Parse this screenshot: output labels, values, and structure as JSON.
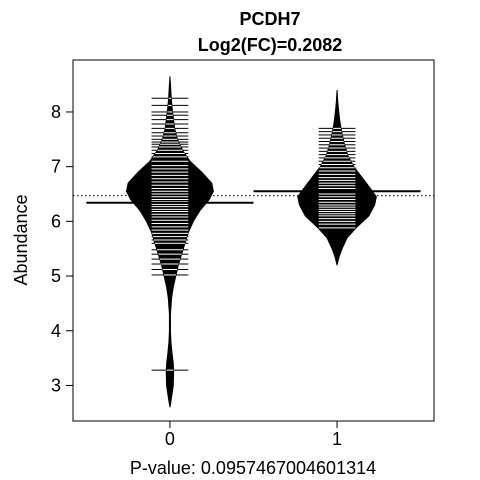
{
  "chart_data": {
    "type": "beanplot",
    "title": "PCDH7",
    "subtitle": "Log2(FC)=0.2082",
    "xlabel": "P-value: 0.0957467004601314",
    "ylabel": "Abundance",
    "categories": [
      "0",
      "1"
    ],
    "ylim": [
      2.35,
      8.95
    ],
    "xlim": [
      -0.58,
      1.58
    ],
    "y_ticks": [
      3,
      4,
      5,
      6,
      7,
      8
    ],
    "overall_mean": 6.47,
    "grid": false,
    "beans": [
      {
        "category": "0",
        "mean": 6.34,
        "range": [
          2.6,
          8.65
        ],
        "density": [
          [
            2.6,
            0.0
          ],
          [
            2.75,
            0.008
          ],
          [
            3.0,
            0.02
          ],
          [
            3.25,
            0.022
          ],
          [
            3.4,
            0.02
          ],
          [
            3.6,
            0.012
          ],
          [
            3.8,
            0.006
          ],
          [
            4.0,
            0.003
          ],
          [
            4.3,
            0.003
          ],
          [
            4.6,
            0.01
          ],
          [
            4.8,
            0.02
          ],
          [
            5.0,
            0.035
          ],
          [
            5.2,
            0.05
          ],
          [
            5.4,
            0.07
          ],
          [
            5.6,
            0.09
          ],
          [
            5.8,
            0.11
          ],
          [
            6.0,
            0.14
          ],
          [
            6.2,
            0.18
          ],
          [
            6.4,
            0.235
          ],
          [
            6.55,
            0.26
          ],
          [
            6.7,
            0.25
          ],
          [
            6.9,
            0.19
          ],
          [
            7.1,
            0.12
          ],
          [
            7.3,
            0.075
          ],
          [
            7.5,
            0.045
          ],
          [
            7.7,
            0.028
          ],
          [
            7.9,
            0.02
          ],
          [
            8.1,
            0.012
          ],
          [
            8.3,
            0.007
          ],
          [
            8.5,
            0.003
          ],
          [
            8.65,
            0.0
          ]
        ],
        "points": [
          3.28,
          5.02,
          5.12,
          5.22,
          5.31,
          5.4,
          5.48,
          5.6,
          5.66,
          5.72,
          5.78,
          5.84,
          5.9,
          5.96,
          6.02,
          6.08,
          6.13,
          6.18,
          6.22,
          6.27,
          6.31,
          6.36,
          6.4,
          6.45,
          6.5,
          6.55,
          6.6,
          6.66,
          6.72,
          6.78,
          6.84,
          6.9,
          6.96,
          7.02,
          7.1,
          7.18,
          7.24,
          7.3,
          7.36,
          7.41,
          7.45,
          7.5,
          7.56,
          7.62,
          7.7,
          7.78,
          7.86,
          7.94,
          8.0,
          8.12,
          8.25
        ]
      },
      {
        "category": "1",
        "mean": 6.55,
        "range": [
          5.2,
          8.4
        ],
        "density": [
          [
            5.2,
            0.0
          ],
          [
            5.35,
            0.012
          ],
          [
            5.5,
            0.03
          ],
          [
            5.7,
            0.06
          ],
          [
            5.9,
            0.12
          ],
          [
            6.1,
            0.19
          ],
          [
            6.3,
            0.225
          ],
          [
            6.45,
            0.235
          ],
          [
            6.6,
            0.2
          ],
          [
            6.8,
            0.15
          ],
          [
            7.0,
            0.1
          ],
          [
            7.2,
            0.065
          ],
          [
            7.4,
            0.045
          ],
          [
            7.6,
            0.03
          ],
          [
            7.8,
            0.018
          ],
          [
            8.0,
            0.01
          ],
          [
            8.2,
            0.004
          ],
          [
            8.4,
            0.0
          ]
        ],
        "points": [
          5.88,
          5.95,
          6.0,
          6.05,
          6.1,
          6.14,
          6.18,
          6.22,
          6.26,
          6.3,
          6.35,
          6.4,
          6.45,
          6.5,
          6.55,
          6.6,
          6.65,
          6.7,
          6.75,
          6.8,
          6.86,
          6.92,
          6.98,
          7.04,
          7.1,
          7.16,
          7.22,
          7.28,
          7.34,
          7.4,
          7.46,
          7.52,
          7.58,
          7.64,
          7.7
        ]
      }
    ]
  }
}
